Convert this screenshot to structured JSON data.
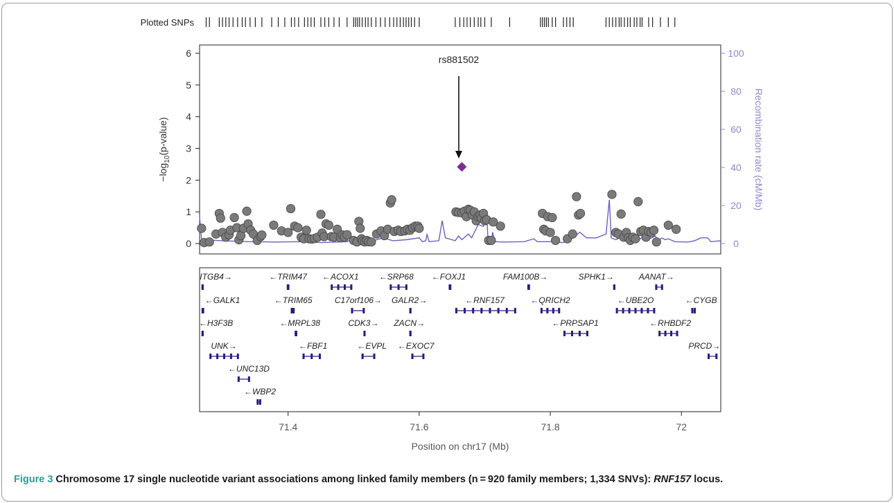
{
  "chart_data": {
    "type": "scatter",
    "plotted_snps_label": "Plotted SNPs",
    "xlabel": "Position on chr17 (Mb)",
    "ylabel_left": "−log10(p-value)",
    "ylabel_left_prefix": "−log",
    "ylabel_left_sub": "10",
    "ylabel_left_suffix": "(p-value)",
    "ylabel_right": "Recombination rate (cM/Mb)",
    "xlim": [
      71.265,
      72.06
    ],
    "ylim_left": [
      0,
      6.2
    ],
    "ylim_right": [
      0,
      103.33
    ],
    "x_ticks": [
      71.4,
      71.6,
      71.8,
      72.0
    ],
    "x_tick_labels": [
      "71.4",
      "71.6",
      "71.8",
      "72"
    ],
    "y_ticks_left": [
      0,
      1,
      2,
      3,
      4,
      5,
      6
    ],
    "y_ticks_right": [
      0,
      20,
      40,
      60,
      80,
      100
    ],
    "colors": {
      "points": "#7a7a7a",
      "top_snp": "#7b2a9a",
      "recomb": "#6a5fc4",
      "genes": "#2b1a86",
      "right_axis": "#8f88cf"
    },
    "top_snp": {
      "label": "rs881502",
      "x": 71.665,
      "y": 2.42
    },
    "snp_ticks": [
      71.275,
      71.28,
      71.295,
      71.3,
      71.305,
      71.31,
      71.316,
      71.323,
      71.33,
      71.335,
      71.342,
      71.35,
      71.36,
      71.375,
      71.385,
      71.395,
      71.405,
      71.41,
      71.416,
      71.425,
      71.43,
      71.435,
      71.44,
      71.45,
      71.456,
      71.462,
      71.47,
      71.478,
      71.49,
      71.5,
      71.503,
      71.506,
      71.509,
      71.513,
      71.518,
      71.522,
      71.527,
      71.534,
      71.541,
      71.548,
      71.555,
      71.561,
      71.566,
      71.571,
      71.576,
      71.58,
      71.584,
      71.588,
      71.593,
      71.6,
      71.655,
      71.662,
      71.668,
      71.673,
      71.678,
      71.684,
      71.69,
      71.694,
      71.7,
      71.71,
      71.738,
      71.785,
      71.788,
      71.791,
      71.794,
      71.797,
      71.803,
      71.808,
      71.82,
      71.825,
      71.83,
      71.835,
      71.885,
      71.89,
      71.895,
      71.9,
      71.905,
      71.908,
      71.913,
      71.918,
      71.922,
      71.928,
      71.932,
      71.937,
      71.94,
      71.95,
      71.956,
      71.968,
      71.98,
      71.99
    ],
    "recombination": [
      [
        71.265,
        14
      ],
      [
        71.268,
        2
      ],
      [
        71.3,
        1.5
      ],
      [
        71.34,
        1
      ],
      [
        71.38,
        0.8
      ],
      [
        71.42,
        1
      ],
      [
        71.45,
        0.5
      ],
      [
        71.49,
        1
      ],
      [
        71.5,
        3
      ],
      [
        71.52,
        0.5
      ],
      [
        71.545,
        3
      ],
      [
        71.56,
        1.5
      ],
      [
        71.58,
        2
      ],
      [
        71.6,
        3
      ],
      [
        71.605,
        1
      ],
      [
        71.61,
        1.5
      ],
      [
        71.612,
        5
      ],
      [
        71.615,
        1
      ],
      [
        71.63,
        1.5
      ],
      [
        71.635,
        12
      ],
      [
        71.64,
        3
      ],
      [
        71.65,
        2
      ],
      [
        71.655,
        1.5
      ],
      [
        71.66,
        4
      ],
      [
        71.665,
        2
      ],
      [
        71.675,
        5
      ],
      [
        71.68,
        3
      ],
      [
        71.69,
        10
      ],
      [
        71.698,
        9
      ],
      [
        71.7,
        17
      ],
      [
        71.703,
        17
      ],
      [
        71.705,
        1
      ],
      [
        71.71,
        1
      ],
      [
        71.712,
        6
      ],
      [
        71.715,
        1
      ],
      [
        71.73,
        0.8
      ],
      [
        71.76,
        1
      ],
      [
        71.77,
        2
      ],
      [
        71.775,
        2.5
      ],
      [
        71.78,
        1
      ],
      [
        71.8,
        1
      ],
      [
        71.82,
        0.5
      ],
      [
        71.835,
        3
      ],
      [
        71.845,
        6
      ],
      [
        71.855,
        3
      ],
      [
        71.87,
        3
      ],
      [
        71.885,
        5
      ],
      [
        71.89,
        23
      ],
      [
        71.893,
        3
      ],
      [
        71.9,
        2
      ],
      [
        71.91,
        4
      ],
      [
        71.915,
        2
      ],
      [
        71.93,
        1.5
      ],
      [
        71.94,
        3
      ],
      [
        71.945,
        2
      ],
      [
        71.955,
        3
      ],
      [
        71.96,
        4
      ],
      [
        71.965,
        1.5
      ],
      [
        71.97,
        3
      ],
      [
        71.975,
        2
      ],
      [
        71.98,
        2.5
      ],
      [
        71.99,
        1
      ],
      [
        72.01,
        0.8
      ],
      [
        72.02,
        1.5
      ],
      [
        72.03,
        3
      ],
      [
        72.04,
        3
      ],
      [
        72.045,
        1
      ],
      [
        72.06,
        1.5
      ]
    ],
    "points": [
      [
        71.268,
        0.48
      ],
      [
        71.272,
        0.03
      ],
      [
        71.28,
        0.05
      ],
      [
        71.29,
        0.3
      ],
      [
        71.295,
        0.95
      ],
      [
        71.297,
        0.8
      ],
      [
        71.3,
        0.35
      ],
      [
        71.305,
        0.2
      ],
      [
        71.31,
        0.28
      ],
      [
        71.312,
        0.42
      ],
      [
        71.318,
        0.82
      ],
      [
        71.322,
        0.5
      ],
      [
        71.325,
        0.12
      ],
      [
        71.328,
        0.25
      ],
      [
        71.332,
        0.48
      ],
      [
        71.337,
        1.02
      ],
      [
        71.339,
        0.62
      ],
      [
        71.343,
        0.42
      ],
      [
        71.347,
        0.3
      ],
      [
        71.353,
        0.1
      ],
      [
        71.358,
        0.22
      ],
      [
        71.36,
        0.27
      ],
      [
        71.378,
        0.58
      ],
      [
        71.39,
        0.4
      ],
      [
        71.4,
        0.35
      ],
      [
        71.404,
        1.1
      ],
      [
        71.41,
        0.55
      ],
      [
        71.415,
        0.5
      ],
      [
        71.42,
        0.2
      ],
      [
        71.424,
        0.15
      ],
      [
        71.428,
        0.42
      ],
      [
        71.432,
        0.15
      ],
      [
        71.436,
        0.14
      ],
      [
        71.44,
        0.16
      ],
      [
        71.445,
        0.2
      ],
      [
        71.45,
        0.92
      ],
      [
        71.452,
        0.33
      ],
      [
        71.455,
        0.22
      ],
      [
        71.458,
        0.62
      ],
      [
        71.462,
        0.58
      ],
      [
        71.466,
        0.22
      ],
      [
        71.47,
        0.2
      ],
      [
        71.475,
        0.45
      ],
      [
        71.48,
        0.18
      ],
      [
        71.483,
        0.27
      ],
      [
        71.486,
        0.2
      ],
      [
        71.49,
        0.28
      ],
      [
        71.5,
        0.1
      ],
      [
        71.505,
        0.05
      ],
      [
        71.508,
        0.7
      ],
      [
        71.51,
        0.48
      ],
      [
        71.512,
        0.15
      ],
      [
        71.514,
        0.08
      ],
      [
        71.517,
        0.05
      ],
      [
        71.52,
        0.1
      ],
      [
        71.523,
        0.06
      ],
      [
        71.527,
        0.05
      ],
      [
        71.535,
        0.3
      ],
      [
        71.542,
        0.4
      ],
      [
        71.547,
        0.25
      ],
      [
        71.552,
        0.45
      ],
      [
        71.556,
        1.28
      ],
      [
        71.558,
        1.38
      ],
      [
        71.562,
        0.38
      ],
      [
        71.568,
        0.42
      ],
      [
        71.572,
        0.38
      ],
      [
        71.578,
        0.4
      ],
      [
        71.582,
        0.45
      ],
      [
        71.586,
        0.42
      ],
      [
        71.59,
        0.5
      ],
      [
        71.594,
        0.55
      ],
      [
        71.598,
        0.55
      ],
      [
        71.6,
        0.48
      ],
      [
        71.656,
        1.0
      ],
      [
        71.66,
        0.98
      ],
      [
        71.665,
        0.97
      ],
      [
        71.669,
        1.02
      ],
      [
        71.672,
        0.85
      ],
      [
        71.675,
        1.08
      ],
      [
        71.678,
        1.05
      ],
      [
        71.681,
        0.9
      ],
      [
        71.684,
        1.0
      ],
      [
        71.687,
        0.72
      ],
      [
        71.69,
        0.85
      ],
      [
        71.693,
        0.9
      ],
      [
        71.695,
        0.8
      ],
      [
        71.698,
        0.95
      ],
      [
        71.7,
        0.72
      ],
      [
        71.703,
        0.75
      ],
      [
        71.706,
        0.1
      ],
      [
        71.71,
        0.1
      ],
      [
        71.713,
        0.68
      ],
      [
        71.724,
        0.55
      ],
      [
        71.788,
        0.95
      ],
      [
        71.79,
        0.45
      ],
      [
        71.793,
        0.4
      ],
      [
        71.796,
        0.85
      ],
      [
        71.8,
        0.35
      ],
      [
        71.803,
        0.82
      ],
      [
        71.808,
        0.1
      ],
      [
        71.826,
        0.15
      ],
      [
        71.834,
        0.3
      ],
      [
        71.84,
        1.48
      ],
      [
        71.843,
        0.9
      ],
      [
        71.846,
        0.95
      ],
      [
        71.894,
        1.55
      ],
      [
        71.9,
        0.35
      ],
      [
        71.904,
        0.3
      ],
      [
        71.908,
        0.93
      ],
      [
        71.912,
        0.2
      ],
      [
        71.916,
        0.35
      ],
      [
        71.919,
        0.18
      ],
      [
        71.922,
        0.1
      ],
      [
        71.926,
        0.2
      ],
      [
        71.93,
        0.15
      ],
      [
        71.934,
        1.32
      ],
      [
        71.938,
        0.38
      ],
      [
        71.942,
        0.42
      ],
      [
        71.946,
        0.2
      ],
      [
        71.95,
        0.38
      ],
      [
        71.954,
        0.35
      ],
      [
        71.958,
        0.42
      ],
      [
        71.962,
        0.05
      ],
      [
        71.98,
        0.58
      ],
      [
        71.992,
        0.45
      ]
    ],
    "genes": [
      {
        "name": "ITGB4",
        "dir": "right",
        "label_x": 71.29,
        "row": 0,
        "start": 71.268,
        "end": 71.269
      },
      {
        "name": "GALK1",
        "dir": "left",
        "label_x": 71.3,
        "row": 1,
        "start": 71.268,
        "end": 71.272
      },
      {
        "name": "H3F3B",
        "dir": "left",
        "label_x": 71.29,
        "row": 2,
        "start": 71.268,
        "end": 71.269
      },
      {
        "name": "UNK",
        "dir": "right",
        "label_x": 71.302,
        "row": 3,
        "start": 71.28,
        "end": 71.325
      },
      {
        "name": "UNC13D",
        "dir": "left",
        "label_x": 71.34,
        "row": 4,
        "start": 71.323,
        "end": 71.342
      },
      {
        "name": "WBP2",
        "dir": "left",
        "label_x": 71.357,
        "row": 5,
        "start": 71.352,
        "end": 71.359
      },
      {
        "name": "TRIM47",
        "dir": "left",
        "label_x": 71.4,
        "row": 0,
        "start": 71.398,
        "end": 71.402
      },
      {
        "name": "TRIM65",
        "dir": "left",
        "label_x": 71.408,
        "row": 1,
        "start": 71.404,
        "end": 71.41
      },
      {
        "name": "MRPL38",
        "dir": "left",
        "label_x": 71.418,
        "row": 2,
        "start": 71.41,
        "end": 71.414
      },
      {
        "name": "FBF1",
        "dir": "left",
        "label_x": 71.438,
        "row": 3,
        "start": 71.422,
        "end": 71.45
      },
      {
        "name": "ACOX1",
        "dir": "left",
        "label_x": 71.48,
        "row": 0,
        "start": 71.465,
        "end": 71.498
      },
      {
        "name": "C17orf106",
        "dir": "right",
        "label_x": 71.507,
        "row": 1,
        "start": 71.496,
        "end": 71.517
      },
      {
        "name": "CDK3",
        "dir": "right",
        "label_x": 71.515,
        "row": 2,
        "start": 71.515,
        "end": 71.517
      },
      {
        "name": "EVPL",
        "dir": "left",
        "label_x": 71.528,
        "row": 3,
        "start": 71.512,
        "end": 71.533
      },
      {
        "name": "SRP68",
        "dir": "left",
        "label_x": 71.565,
        "row": 0,
        "start": 71.555,
        "end": 71.582
      },
      {
        "name": "GALR2",
        "dir": "right",
        "label_x": 71.585,
        "row": 1,
        "start": 71.585,
        "end": 71.587
      },
      {
        "name": "ZACN",
        "dir": "right",
        "label_x": 71.585,
        "row": 2,
        "start": 71.585,
        "end": 71.587
      },
      {
        "name": "EXOC7",
        "dir": "left",
        "label_x": 71.595,
        "row": 3,
        "start": 71.588,
        "end": 71.608
      },
      {
        "name": "FOXJ1",
        "dir": "left",
        "label_x": 71.645,
        "row": 0,
        "start": 71.645,
        "end": 71.649
      },
      {
        "name": "RNF157",
        "dir": "left",
        "label_x": 71.7,
        "row": 1,
        "start": 71.655,
        "end": 71.748
      },
      {
        "name": "FAM100B",
        "dir": "right",
        "label_x": 71.762,
        "row": 0,
        "start": 71.765,
        "end": 71.769
      },
      {
        "name": "QRICH2",
        "dir": "left",
        "label_x": 71.8,
        "row": 1,
        "start": 71.785,
        "end": 71.815
      },
      {
        "name": "PRPSAP1",
        "dir": "left",
        "label_x": 71.838,
        "row": 2,
        "start": 71.82,
        "end": 71.858
      },
      {
        "name": "SPHK1",
        "dir": "right",
        "label_x": 71.87,
        "row": 0,
        "start": 71.896,
        "end": 71.899
      },
      {
        "name": "UBE2O",
        "dir": "left",
        "label_x": 71.93,
        "row": 1,
        "start": 71.9,
        "end": 71.96
      },
      {
        "name": "AANAT",
        "dir": "right",
        "label_x": 71.962,
        "row": 0,
        "start": 71.96,
        "end": 71.972
      },
      {
        "name": "RHBDF2",
        "dir": "left",
        "label_x": 71.983,
        "row": 2,
        "start": 71.965,
        "end": 71.995
      },
      {
        "name": "CYGB",
        "dir": "left",
        "label_x": 72.03,
        "row": 1,
        "start": 72.015,
        "end": 72.022
      },
      {
        "name": "PRCD",
        "dir": "right",
        "label_x": 72.035,
        "row": 3,
        "start": 72.04,
        "end": 72.055
      }
    ]
  },
  "caption": {
    "label": "Figure 3",
    "text": " Chromosome 17 single nucleotide variant associations among linked family members (n = 920 family members; 1,334 SNVs): ",
    "gene_italic": "RNF157",
    "tail": " locus."
  }
}
